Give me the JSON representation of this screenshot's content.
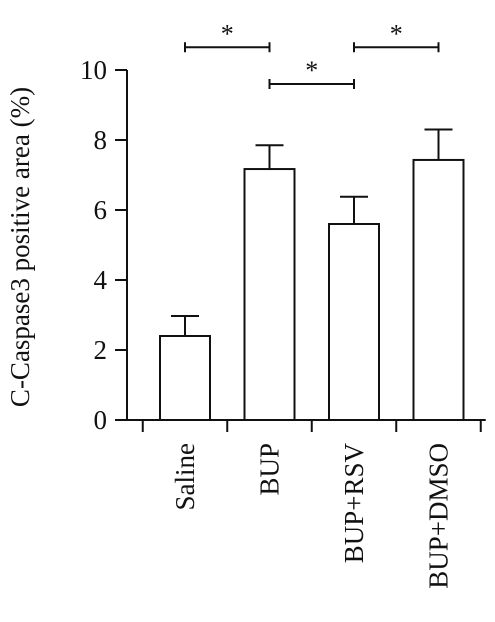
{
  "chart_data": {
    "type": "bar",
    "ylabel": "C-Caspase3 positive area (%)",
    "xlabel": "",
    "title": "",
    "ylim": [
      0,
      10
    ],
    "yticks": [
      0,
      2,
      4,
      6,
      8,
      10
    ],
    "grid": false,
    "categories": [
      "Saline",
      "BUP",
      "BUP+RSV",
      "BUP+DMSO"
    ],
    "series": [
      {
        "values": [
          2.4,
          7.17,
          5.6,
          7.43
        ],
        "error": [
          0.57,
          0.68,
          0.78,
          0.87
        ]
      }
    ],
    "significance": [
      {
        "from": "Saline",
        "to": "BUP",
        "label": "*",
        "y": 10.65
      },
      {
        "from": "BUP",
        "to": "BUP+RSV",
        "label": "*",
        "y": 9.6
      },
      {
        "from": "BUP+RSV",
        "to": "BUP+DMSO",
        "label": "*",
        "y": 10.65
      }
    ],
    "colors": {
      "bar_fill": "#ffffff",
      "stroke": "#111111"
    }
  }
}
